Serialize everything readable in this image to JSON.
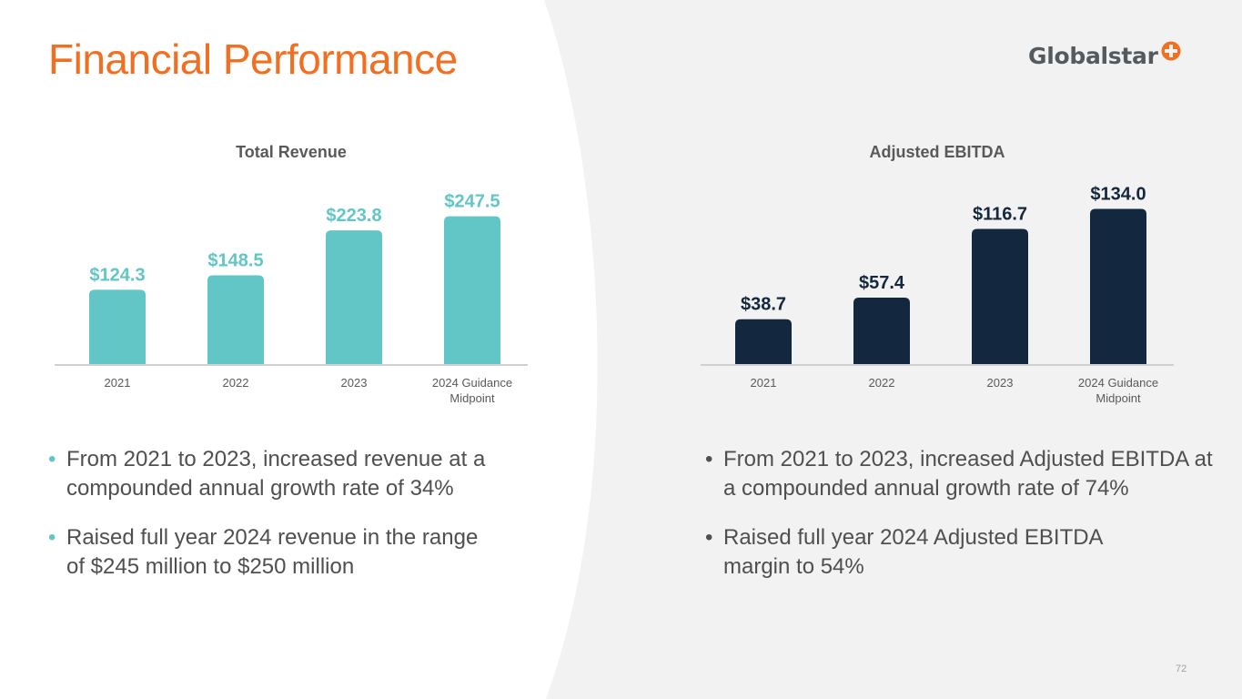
{
  "page_title": "Financial Performance",
  "logo": {
    "wordmark": "Globalstar",
    "mark_color": "#f26f21"
  },
  "colors": {
    "title": "#f26f21",
    "revenue_bar": "#62c6c6",
    "ebitda_bar": "#13283e",
    "axis_text": "#595959",
    "body_text": "#4f4f4f"
  },
  "chart_data": [
    {
      "type": "bar",
      "title": "Total Revenue",
      "categories": [
        "2021",
        "2022",
        "2023",
        "2024 Guidance Midpoint"
      ],
      "values": [
        124.3,
        148.5,
        223.8,
        247.5
      ],
      "data_labels": [
        "$124.3",
        "$148.5",
        "$223.8",
        "$247.5"
      ],
      "xlabel": "",
      "ylabel": "",
      "ylim": [
        0,
        320
      ],
      "grid": false,
      "legend": "none",
      "bar_color": "#62c6c6",
      "label_color": "#62c6c6"
    },
    {
      "type": "bar",
      "title": "Adjusted EBITDA",
      "categories": [
        "2021",
        "2022",
        "2023",
        "2024 Guidance Midpoint"
      ],
      "values": [
        38.7,
        57.4,
        116.7,
        134.0
      ],
      "data_labels": [
        "$38.7",
        "$57.4",
        "$116.7",
        "$134.0"
      ],
      "xlabel": "",
      "ylabel": "",
      "ylim": [
        0,
        165
      ],
      "grid": false,
      "legend": "none",
      "bar_color": "#13283e",
      "label_color": "#13283e"
    }
  ],
  "left_bullets": [
    {
      "line1": "From 2021 to 2023, increased revenue at a",
      "line2": "compounded annual growth rate of 34%"
    },
    {
      "line1": "Raised full year 2024 revenue in the range",
      "line2": "of $245 million to $250 million"
    }
  ],
  "right_bullets": [
    {
      "line1": "From 2021 to 2023, increased Adjusted EBITDA at",
      "line2": "a compounded annual growth rate of 74%"
    },
    {
      "line1": "Raised full year 2024 Adjusted EBITDA",
      "line2": "margin to 54%"
    }
  ],
  "bullet_glyph": "•",
  "page_number": "72"
}
